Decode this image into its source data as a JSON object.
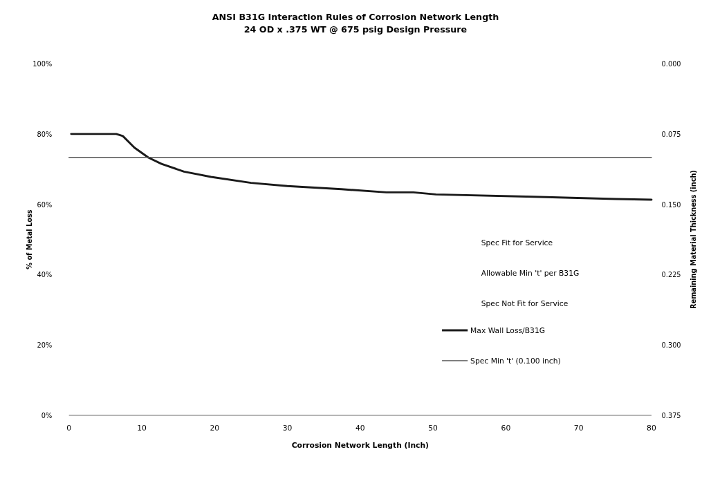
{
  "chart_data": {
    "type": "line",
    "title": "ANSI B31G Interaction Rules of Corrosion Network Length",
    "subtitle": "24 OD x .375 WT @ 675 psig Design Pressure",
    "xlabel": "Corrosion Network Length (Inch)",
    "ylabel": "% of Metal Loss",
    "y2label": "Remaining Material Thickness (inch)",
    "xlim": [
      0,
      80
    ],
    "xticks": [
      0,
      10,
      20,
      30,
      40,
      50,
      60,
      70,
      80
    ],
    "ylim": [
      0,
      100
    ],
    "yticks": [
      {
        "value": 0,
        "label": "0%"
      },
      {
        "value": 20,
        "label": "20%"
      },
      {
        "value": 40,
        "label": "40%"
      },
      {
        "value": 60,
        "label": "60%"
      },
      {
        "value": 80,
        "label": "80%"
      },
      {
        "value": 100,
        "label": "100%"
      }
    ],
    "y2lim": [
      0.375,
      0
    ],
    "y2ticks": [
      {
        "value": 0,
        "label": "0.000"
      },
      {
        "value": 0.075,
        "label": "0.075"
      },
      {
        "value": 0.15,
        "label": "0.150"
      },
      {
        "value": 0.225,
        "label": "0.225"
      },
      {
        "value": 0.3,
        "label": "0.300"
      },
      {
        "value": 0.375,
        "label": "0.375"
      }
    ],
    "series": [
      {
        "name": "Max Wall Loss/B31G",
        "color": "#1a1a1a",
        "x": [
          0.3,
          6.5,
          7.4,
          9.0,
          10.9,
          12.7,
          15.8,
          19.5,
          25.0,
          30.0,
          37.4,
          43.6,
          47.3,
          50.4,
          62.8,
          75.1,
          80
        ],
        "values": [
          80,
          80,
          79.4,
          76.1,
          73.3,
          71.5,
          69.3,
          67.8,
          66.1,
          65.2,
          64.3,
          63.4,
          63.4,
          62.8,
          62.2,
          61.5,
          61.3
        ]
      },
      {
        "name": "Spec Min 't' (0.100 inch)",
        "color": "#555555",
        "axis": "y2",
        "x": [
          0,
          80
        ],
        "values": [
          0.1,
          0.1
        ]
      }
    ],
    "annotations": [
      "Spec Fit for Service",
      "Allowable Min 't' per B31G",
      "Spec Not Fit for Service"
    ],
    "legend": "right"
  }
}
